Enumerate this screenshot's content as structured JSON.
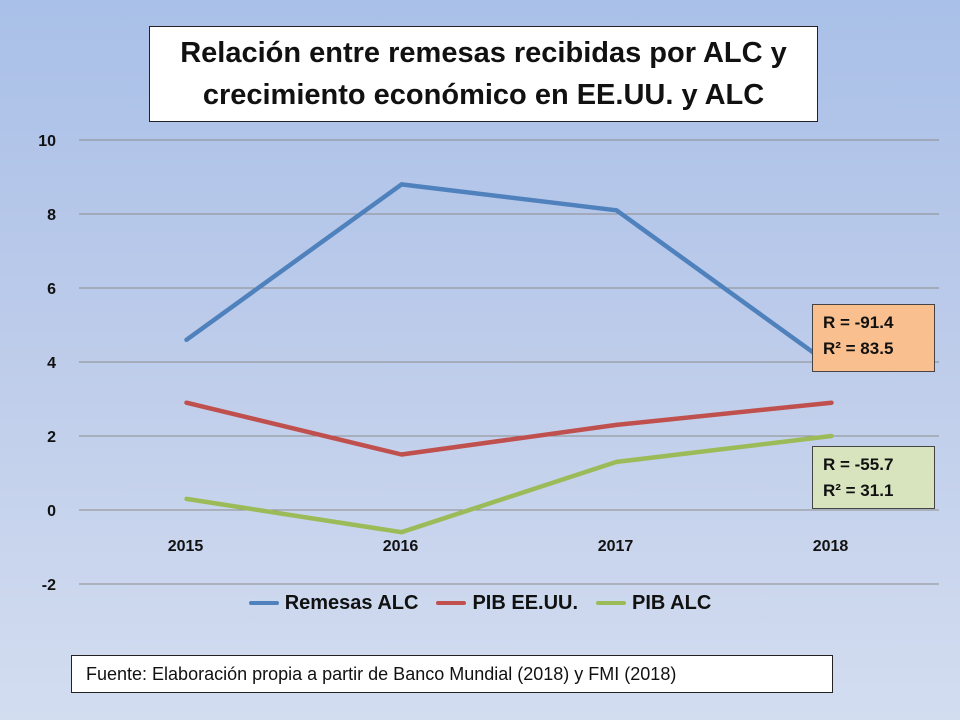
{
  "chart_data": {
    "type": "line",
    "title_lines": [
      "Relación entre remesas recibidas por ALC y",
      "crecimiento económico en EE.UU. y ALC"
    ],
    "categories": [
      "2015",
      "2016",
      "2017",
      "2018"
    ],
    "ylim": [
      -2,
      10
    ],
    "yticks": [
      -2,
      0,
      2,
      4,
      6,
      8,
      10
    ],
    "grid": true,
    "legend_position": "bottom",
    "series": [
      {
        "name": "Remesas ALC",
        "color": "#4f81bd",
        "values": [
          4.6,
          8.8,
          8.1,
          3.9
        ]
      },
      {
        "name": "PIB EE.UU.",
        "color": "#c0504d",
        "values": [
          2.9,
          1.5,
          2.3,
          2.9
        ]
      },
      {
        "name": "PIB ALC",
        "color": "#9bbb59",
        "values": [
          0.3,
          -0.6,
          1.3,
          2.0
        ]
      }
    ],
    "annotations": [
      {
        "r": "R = -91.4",
        "r2": "R² = 83.5"
      },
      {
        "r": "R = -55.7",
        "r2": "R² = 31.1"
      }
    ]
  },
  "source": "Fuente: Elaboración propia a partir de Banco Mundial (2018) y FMI (2018)"
}
